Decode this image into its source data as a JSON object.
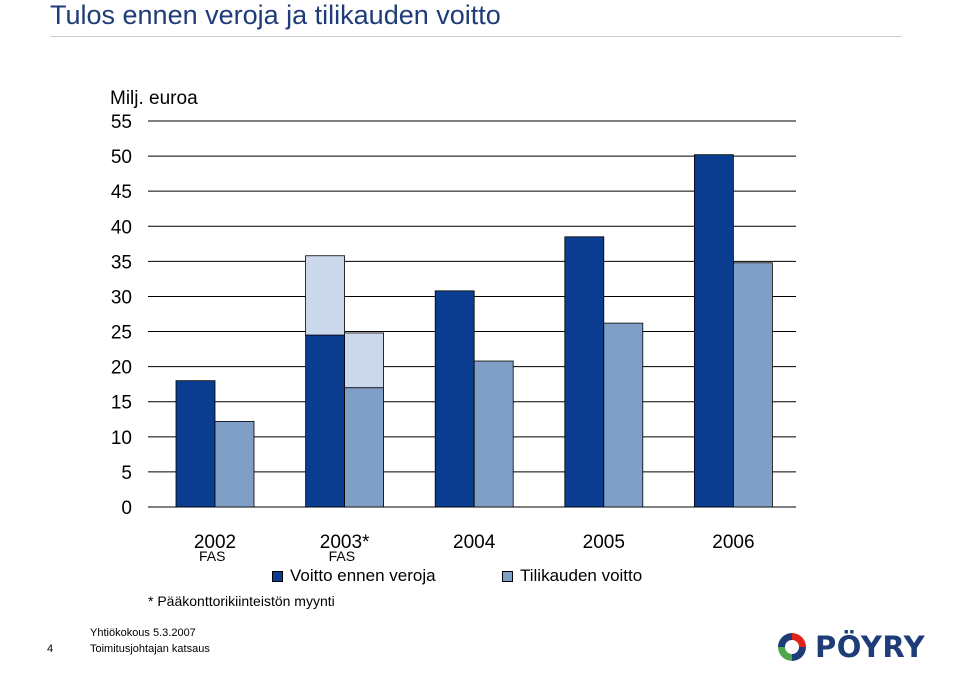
{
  "page": {
    "title": "Tulos ennen veroja ja tilikauden voitto",
    "footnote": "* Pääkonttorikiinteistön myynti",
    "footer_line1": "Yhtiökokous 5.3.2007",
    "footer_line2": "Toimitusjohtajan katsaus",
    "page_number": "4",
    "logo_text": "PÖYRY"
  },
  "chart_data": {
    "type": "bar",
    "ylabel": "Milj. euroa",
    "ylim": [
      0,
      55
    ],
    "yticks": [
      0,
      5,
      10,
      15,
      20,
      25,
      30,
      35,
      40,
      45,
      50,
      55
    ],
    "grid": true,
    "categories": [
      "2002",
      "2003*",
      "2004",
      "2005",
      "2006"
    ],
    "sublabels": [
      "FAS",
      "FAS",
      "",
      "",
      ""
    ],
    "series": [
      {
        "name": "Voitto ennen veroja",
        "color": "#0a3d8f",
        "values": [
          18.0,
          24.5,
          30.8,
          38.5,
          50.2
        ],
        "extra": [
          0,
          11.3,
          0,
          0,
          0
        ]
      },
      {
        "name": "Tilikauden voitto",
        "color": "#809fc6",
        "values": [
          12.2,
          17.0,
          20.8,
          26.2,
          34.8
        ],
        "extra": [
          0,
          7.8,
          0,
          0,
          0
        ]
      }
    ],
    "extra_color": "#cbd7ea"
  }
}
